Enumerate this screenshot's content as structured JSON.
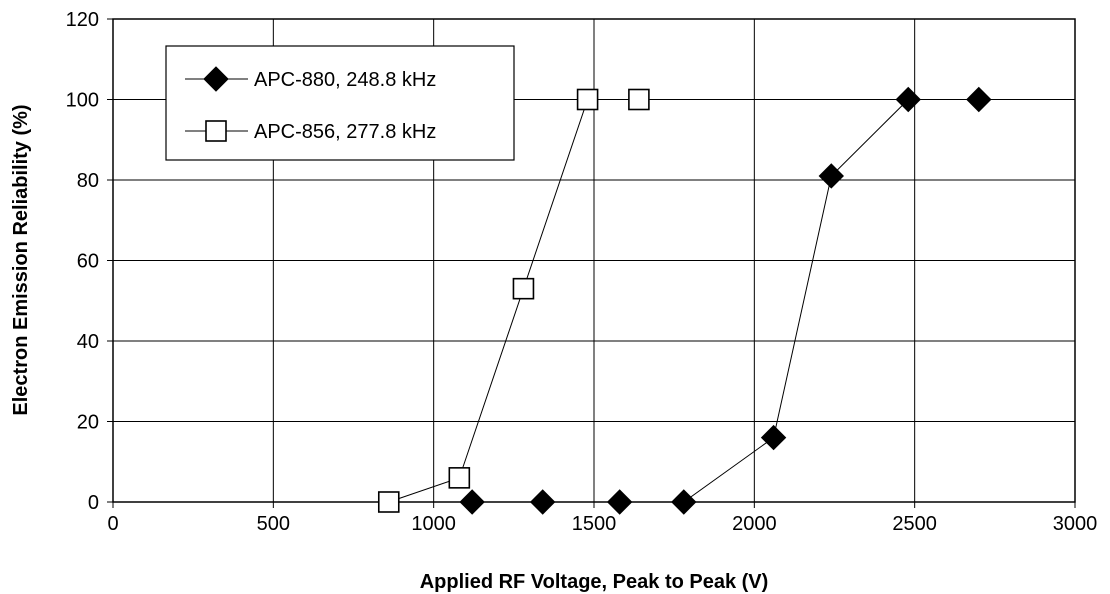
{
  "chart_data": {
    "type": "scatter",
    "title": "",
    "xlabel": "Applied RF Voltage, Peak to Peak (V)",
    "ylabel": "Electron Emission Reliability (%)",
    "xlim": [
      0,
      3000
    ],
    "ylim": [
      0,
      120
    ],
    "xticks": [
      0,
      500,
      1000,
      1500,
      2000,
      2500,
      3000
    ],
    "yticks": [
      0,
      20,
      40,
      60,
      80,
      100,
      120
    ],
    "grid": true,
    "legend_position": "top-left",
    "series": [
      {
        "name": "APC-880, 248.8 kHz",
        "marker": "filled-diamond",
        "color": "#000000",
        "connected": true,
        "points": [
          {
            "x": 1120,
            "y": 0
          },
          {
            "x": 1340,
            "y": 0
          },
          {
            "x": 1580,
            "y": 0
          },
          {
            "x": 1780,
            "y": 0
          },
          {
            "x": 2060,
            "y": 16
          },
          {
            "x": 2240,
            "y": 81
          },
          {
            "x": 2480,
            "y": 100
          },
          {
            "x": 2700,
            "y": 100
          }
        ]
      },
      {
        "name": "APC-856, 277.8 kHz",
        "marker": "open-square",
        "color": "#000000",
        "connected": true,
        "points": [
          {
            "x": 860,
            "y": 0
          },
          {
            "x": 1080,
            "y": 6
          },
          {
            "x": 1280,
            "y": 53
          },
          {
            "x": 1480,
            "y": 100
          },
          {
            "x": 1640,
            "y": 100
          }
        ]
      }
    ]
  }
}
